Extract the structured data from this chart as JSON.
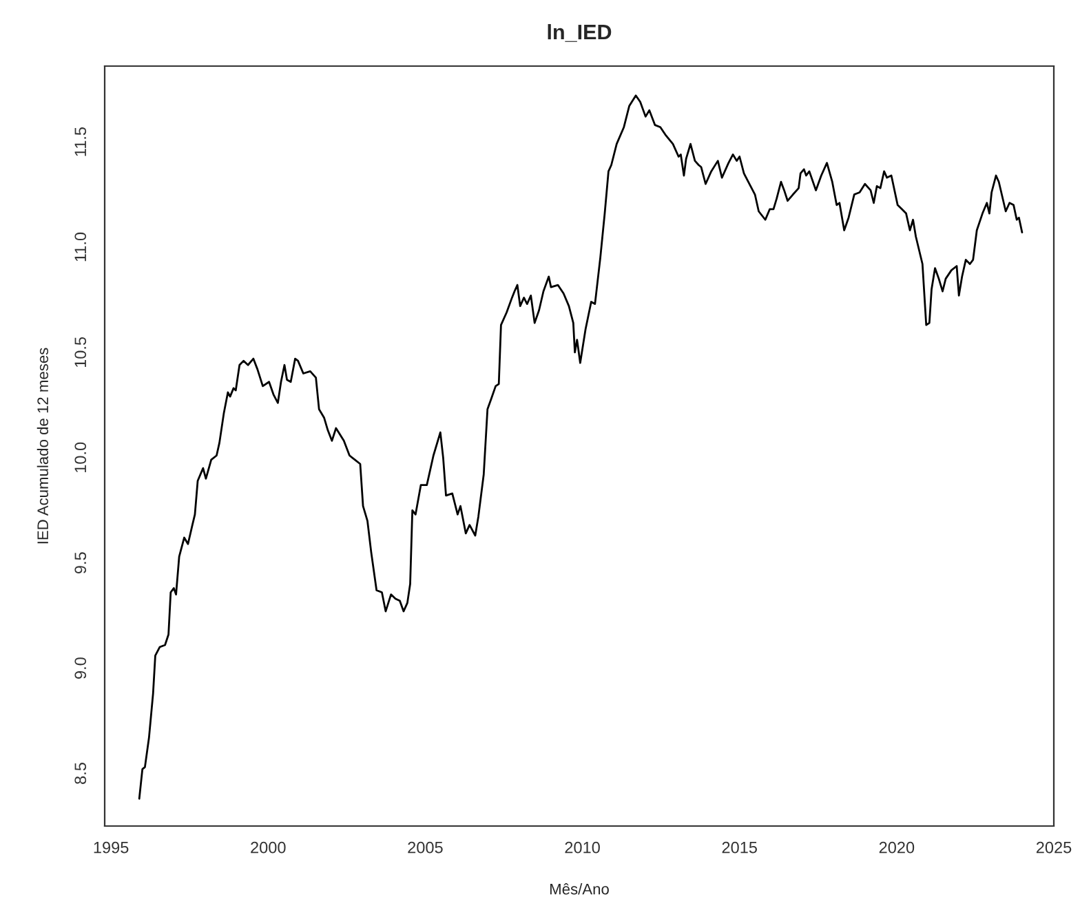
{
  "chart_data": {
    "type": "line",
    "title": "ln_IED",
    "xlabel": "Mês/Ano",
    "ylabel": "IED Acumulado de 12 meses",
    "xlim": [
      1994.8,
      2025.0
    ],
    "ylim": [
      8.25,
      11.86
    ],
    "xticks": [
      1995,
      2000,
      2005,
      2010,
      2015,
      2020,
      2025
    ],
    "yticks": [
      8.5,
      {
        "value": 9,
        "label": "9.0"
      },
      9.5,
      {
        "value": 10,
        "label": "10.0"
      },
      10.5,
      {
        "value": 11,
        "label": "11.0"
      },
      11.5
    ],
    "grid": false,
    "marker": "none",
    "line_style": "solid",
    "series": [
      {
        "color": "#000000",
        "x": [
          1995.9,
          1996.0,
          1996.08,
          1996.21,
          1996.34,
          1996.41,
          1996.55,
          1996.72,
          1996.83,
          1996.9,
          1997.0,
          1997.07,
          1997.17,
          1997.33,
          1997.45,
          1997.59,
          1997.67,
          1997.76,
          1997.93,
          1998.02,
          1998.19,
          1998.36,
          1998.45,
          1998.59,
          1998.72,
          1998.79,
          1998.9,
          1998.97,
          1999.09,
          1999.22,
          1999.36,
          1999.53,
          1999.66,
          1999.83,
          2000.03,
          2000.17,
          2000.31,
          2000.41,
          2000.52,
          2000.6,
          2000.72,
          2000.86,
          2000.95,
          2001.12,
          2001.34,
          2001.52,
          2001.62,
          2001.78,
          2001.9,
          2002.03,
          2002.16,
          2002.41,
          2002.59,
          2002.76,
          2002.93,
          2003.02,
          2003.16,
          2003.28,
          2003.45,
          2003.62,
          2003.74,
          2003.91,
          2004.05,
          2004.19,
          2004.31,
          2004.43,
          2004.52,
          2004.59,
          2004.69,
          2004.86,
          2005.05,
          2005.26,
          2005.48,
          2005.57,
          2005.66,
          2005.86,
          2006.03,
          2006.12,
          2006.29,
          2006.41,
          2006.59,
          2006.69,
          2006.86,
          2006.98,
          2007.1,
          2007.24,
          2007.34,
          2007.41,
          2007.59,
          2007.76,
          2007.84,
          2007.93,
          2008.02,
          2008.14,
          2008.24,
          2008.36,
          2008.48,
          2008.62,
          2008.76,
          2008.93,
          2009.0,
          2009.22,
          2009.4,
          2009.57,
          2009.71,
          2009.76,
          2009.83,
          2009.93,
          2010.1,
          2010.28,
          2010.4,
          2010.57,
          2010.71,
          2010.83,
          2010.92,
          2011.09,
          2011.32,
          2011.49,
          2011.7,
          2011.84,
          2012.01,
          2012.13,
          2012.31,
          2012.48,
          2012.66,
          2012.88,
          2013.06,
          2013.13,
          2013.23,
          2013.3,
          2013.44,
          2013.58,
          2013.7,
          2013.78,
          2013.92,
          2014.1,
          2014.31,
          2014.44,
          2014.65,
          2014.79,
          2014.91,
          2015.0,
          2015.14,
          2015.35,
          2015.49,
          2015.61,
          2015.82,
          2015.96,
          2016.08,
          2016.18,
          2016.32,
          2016.42,
          2016.53,
          2016.7,
          2016.88,
          2016.94,
          2017.05,
          2017.12,
          2017.22,
          2017.43,
          2017.6,
          2017.78,
          2017.95,
          2018.09,
          2018.18,
          2018.33,
          2018.47,
          2018.65,
          2018.82,
          2018.99,
          2019.17,
          2019.27,
          2019.37,
          2019.48,
          2019.6,
          2019.69,
          2019.83,
          2020.03,
          2020.17,
          2020.3,
          2020.42,
          2020.52,
          2020.61,
          2020.82,
          2020.94,
          2021.04,
          2021.11,
          2021.22,
          2021.34,
          2021.46,
          2021.56,
          2021.74,
          2021.91,
          2021.98,
          2022.08,
          2022.2,
          2022.33,
          2022.43,
          2022.55,
          2022.73,
          2022.87,
          2022.95,
          2023.02,
          2023.16,
          2023.25,
          2023.47,
          2023.59,
          2023.72,
          2023.82,
          2023.89,
          2023.99
        ],
        "values": [
          8.38,
          8.52,
          8.53,
          8.67,
          8.88,
          9.06,
          9.1,
          9.11,
          9.16,
          9.36,
          9.38,
          9.35,
          9.53,
          9.62,
          9.59,
          9.68,
          9.73,
          9.89,
          9.95,
          9.9,
          9.99,
          10.01,
          10.07,
          10.21,
          10.31,
          10.29,
          10.33,
          10.32,
          10.44,
          10.46,
          10.44,
          10.47,
          10.42,
          10.34,
          10.36,
          10.3,
          10.26,
          10.36,
          10.44,
          10.37,
          10.36,
          10.47,
          10.46,
          10.4,
          10.41,
          10.38,
          10.23,
          10.19,
          10.13,
          10.08,
          10.14,
          10.08,
          10.01,
          9.99,
          9.97,
          9.77,
          9.7,
          9.55,
          9.37,
          9.36,
          9.27,
          9.35,
          9.33,
          9.32,
          9.27,
          9.31,
          9.4,
          9.75,
          9.73,
          9.87,
          9.87,
          10.01,
          10.12,
          10.0,
          9.82,
          9.83,
          9.73,
          9.77,
          9.64,
          9.68,
          9.63,
          9.72,
          9.92,
          10.23,
          10.28,
          10.34,
          10.35,
          10.63,
          10.69,
          10.76,
          10.79,
          10.82,
          10.72,
          10.76,
          10.73,
          10.77,
          10.64,
          10.7,
          10.79,
          10.86,
          10.81,
          10.82,
          10.78,
          10.72,
          10.64,
          10.5,
          10.56,
          10.45,
          10.61,
          10.74,
          10.73,
          10.95,
          11.16,
          11.36,
          11.39,
          11.49,
          11.57,
          11.67,
          11.72,
          11.69,
          11.62,
          11.65,
          11.58,
          11.57,
          11.53,
          11.49,
          11.43,
          11.44,
          11.34,
          11.42,
          11.49,
          11.41,
          11.39,
          11.38,
          11.3,
          11.36,
          11.41,
          11.33,
          11.4,
          11.44,
          11.41,
          11.43,
          11.35,
          11.29,
          11.25,
          11.17,
          11.13,
          11.18,
          11.18,
          11.23,
          11.31,
          11.27,
          11.22,
          11.25,
          11.28,
          11.35,
          11.37,
          11.34,
          11.36,
          11.27,
          11.34,
          11.4,
          11.31,
          11.2,
          11.21,
          11.08,
          11.14,
          11.25,
          11.26,
          11.3,
          11.27,
          11.21,
          11.29,
          11.28,
          11.36,
          11.33,
          11.34,
          11.2,
          11.18,
          11.16,
          11.08,
          11.13,
          11.05,
          10.92,
          10.63,
          10.64,
          10.8,
          10.9,
          10.85,
          10.79,
          10.85,
          10.89,
          10.91,
          10.77,
          10.86,
          10.94,
          10.92,
          10.94,
          11.08,
          11.16,
          11.21,
          11.16,
          11.26,
          11.34,
          11.31,
          11.17,
          11.21,
          11.2,
          11.13,
          11.14,
          11.07
        ]
      }
    ]
  }
}
